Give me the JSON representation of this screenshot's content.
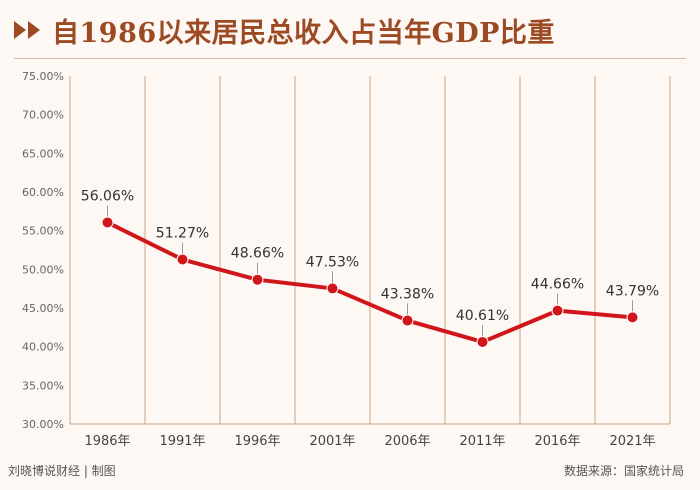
{
  "title": "自1986以来居民总收入占当年GDP比重",
  "footer": {
    "credit": "刘晓博说财经 | 制图",
    "source": "数据来源：国家统计局"
  },
  "colors": {
    "title": "#9c4a24",
    "line": "#d0161b",
    "grid": "#c9a585",
    "axis_text": "#444444"
  },
  "chart_data": {
    "type": "line",
    "title": "自1986以来居民总收入占当年GDP比重",
    "xlabel": "",
    "ylabel": "",
    "categories": [
      "1986年",
      "1991年",
      "1996年",
      "2001年",
      "2006年",
      "2011年",
      "2016年",
      "2021年"
    ],
    "series": [
      {
        "values": [
          56.06,
          51.27,
          48.66,
          47.53,
          43.38,
          40.61,
          44.66,
          43.79
        ],
        "labels": [
          "56.06%",
          "51.27%",
          "48.66%",
          "47.53%",
          "43.38%",
          "40.61%",
          "44.66%",
          "43.79%"
        ]
      }
    ],
    "ylim": [
      30,
      75
    ],
    "yticks": [
      30,
      35,
      40,
      45,
      50,
      55,
      60,
      65,
      70,
      75
    ],
    "ytick_labels": [
      "30.00%",
      "35.00%",
      "40.00%",
      "45.00%",
      "50.00%",
      "55.00%",
      "60.00%",
      "65.00%",
      "70.00%",
      "75.00%"
    ],
    "grid": "vertical",
    "legend": "none"
  }
}
